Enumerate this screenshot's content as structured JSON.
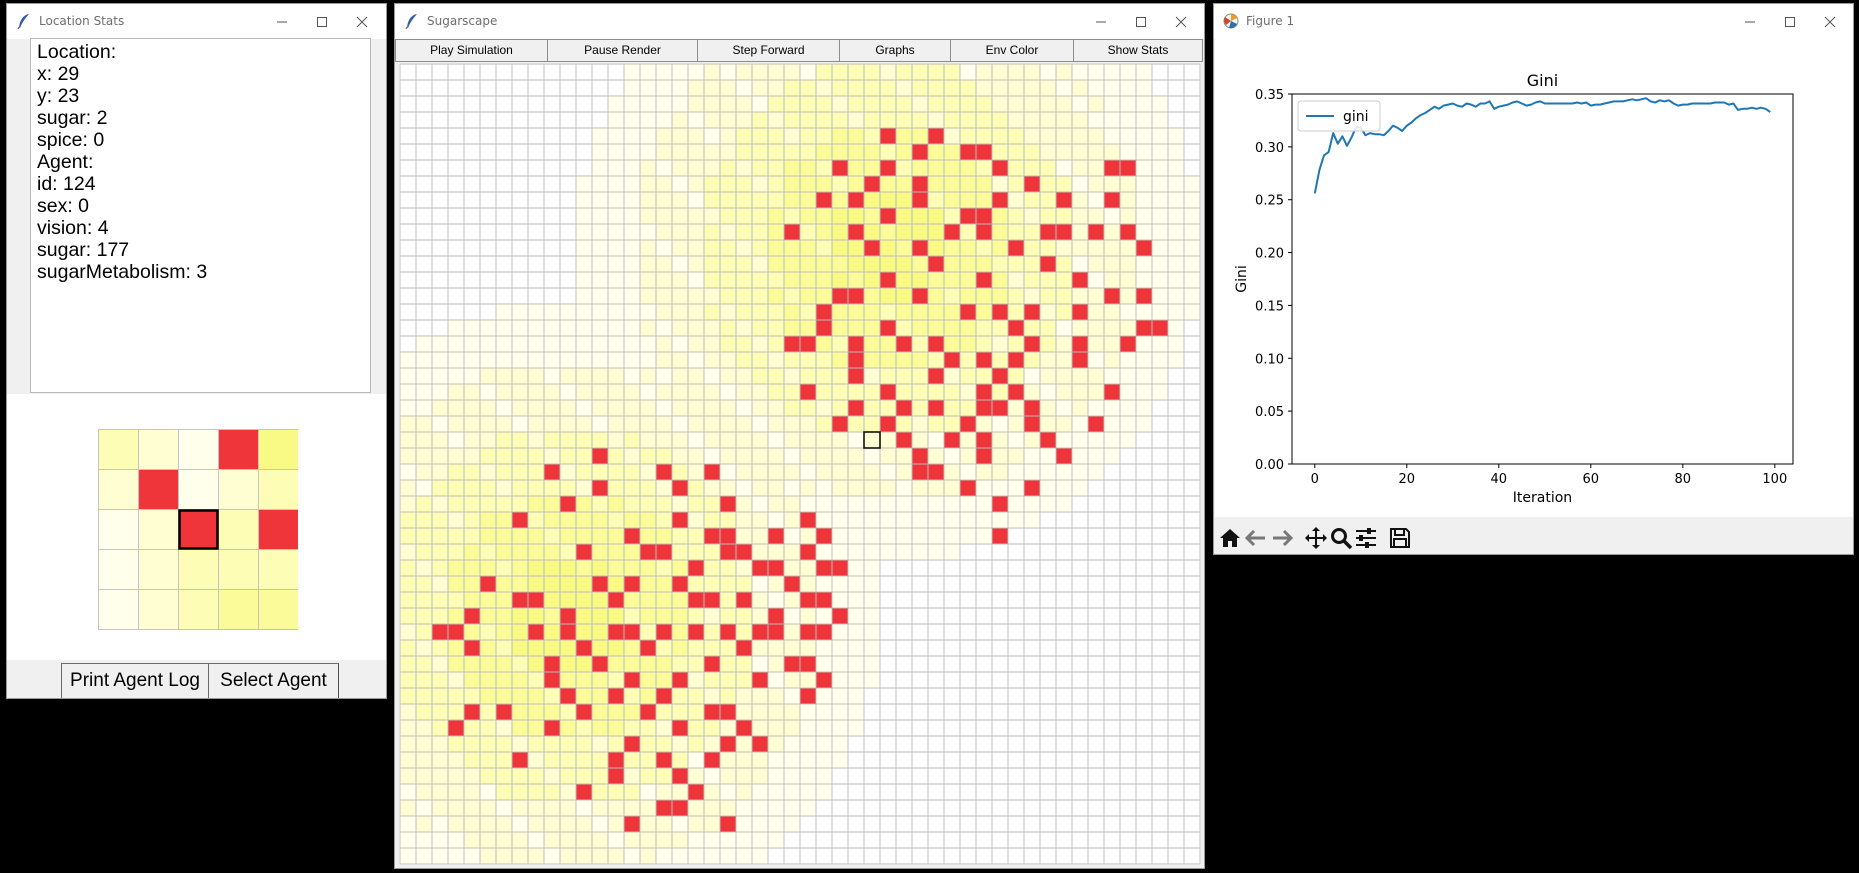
{
  "stats_window": {
    "title": "Location Stats",
    "lines": [
      "Location:",
      "x: 29",
      "y: 23",
      "sugar: 2",
      "spice: 0",
      "",
      "Agent:",
      "id: 124",
      "sex: 0",
      "vision: 4",
      "sugar: 177",
      "sugarMetabolism: 3"
    ],
    "neighborhood": [
      [
        3,
        2,
        1,
        "A",
        5
      ],
      [
        2,
        "A",
        1,
        2,
        3
      ],
      [
        1,
        2,
        "S",
        3,
        "A"
      ],
      [
        1,
        2,
        3,
        3,
        3
      ],
      [
        1,
        2,
        3,
        4,
        4
      ]
    ],
    "print_log_label": "Print Agent Log",
    "select_agent_label": "Select Agent"
  },
  "sugar_window": {
    "title": "Sugarscape",
    "buttons": [
      "Play Simulation",
      "Pause Render",
      "Step Forward",
      "Graphs",
      "Env Color",
      "Show Stats"
    ],
    "grid_size": 50,
    "selected_cell": [
      29,
      23
    ],
    "peaks": [
      [
        30,
        11
      ],
      [
        10,
        34
      ]
    ],
    "agents": [
      [
        30,
        4
      ],
      [
        33,
        4
      ],
      [
        32,
        5
      ],
      [
        35,
        5
      ],
      [
        36,
        5
      ],
      [
        27,
        6
      ],
      [
        30,
        6
      ],
      [
        37,
        6
      ],
      [
        44,
        6
      ],
      [
        45,
        6
      ],
      [
        29,
        7
      ],
      [
        32,
        7
      ],
      [
        39,
        7
      ],
      [
        26,
        8
      ],
      [
        28,
        8
      ],
      [
        32,
        8
      ],
      [
        37,
        8
      ],
      [
        41,
        8
      ],
      [
        44,
        8
      ],
      [
        30,
        9
      ],
      [
        35,
        9
      ],
      [
        36,
        9
      ],
      [
        24,
        10
      ],
      [
        28,
        10
      ],
      [
        34,
        10
      ],
      [
        36,
        10
      ],
      [
        40,
        10
      ],
      [
        41,
        10
      ],
      [
        43,
        10
      ],
      [
        45,
        10
      ],
      [
        29,
        11
      ],
      [
        32,
        11
      ],
      [
        38,
        11
      ],
      [
        46,
        11
      ],
      [
        33,
        12
      ],
      [
        40,
        12
      ],
      [
        30,
        13
      ],
      [
        36,
        13
      ],
      [
        42,
        13
      ],
      [
        27,
        14
      ],
      [
        28,
        14
      ],
      [
        32,
        14
      ],
      [
        44,
        14
      ],
      [
        46,
        14
      ],
      [
        26,
        15
      ],
      [
        35,
        15
      ],
      [
        37,
        15
      ],
      [
        39,
        15
      ],
      [
        42,
        15
      ],
      [
        26,
        16
      ],
      [
        30,
        16
      ],
      [
        38,
        16
      ],
      [
        46,
        16
      ],
      [
        47,
        16
      ],
      [
        24,
        17
      ],
      [
        25,
        17
      ],
      [
        28,
        17
      ],
      [
        31,
        17
      ],
      [
        33,
        17
      ],
      [
        39,
        17
      ],
      [
        42,
        17
      ],
      [
        45,
        17
      ],
      [
        28,
        18
      ],
      [
        34,
        18
      ],
      [
        36,
        18
      ],
      [
        38,
        18
      ],
      [
        42,
        18
      ],
      [
        28,
        19
      ],
      [
        33,
        19
      ],
      [
        37,
        19
      ],
      [
        25,
        20
      ],
      [
        30,
        20
      ],
      [
        36,
        20
      ],
      [
        38,
        20
      ],
      [
        44,
        20
      ],
      [
        28,
        21
      ],
      [
        31,
        21
      ],
      [
        33,
        21
      ],
      [
        36,
        21
      ],
      [
        37,
        21
      ],
      [
        39,
        21
      ],
      [
        27,
        22
      ],
      [
        30,
        22
      ],
      [
        35,
        22
      ],
      [
        39,
        22
      ],
      [
        43,
        22
      ],
      [
        31,
        23
      ],
      [
        34,
        23
      ],
      [
        36,
        23
      ],
      [
        40,
        23
      ],
      [
        12,
        24
      ],
      [
        32,
        24
      ],
      [
        36,
        24
      ],
      [
        41,
        24
      ],
      [
        9,
        25
      ],
      [
        16,
        25
      ],
      [
        19,
        25
      ],
      [
        32,
        25
      ],
      [
        33,
        25
      ],
      [
        12,
        26
      ],
      [
        17,
        26
      ],
      [
        35,
        26
      ],
      [
        39,
        26
      ],
      [
        10,
        27
      ],
      [
        20,
        27
      ],
      [
        37,
        27
      ],
      [
        7,
        28
      ],
      [
        17,
        28
      ],
      [
        25,
        28
      ],
      [
        14,
        29
      ],
      [
        19,
        29
      ],
      [
        20,
        29
      ],
      [
        23,
        29
      ],
      [
        26,
        29
      ],
      [
        37,
        29
      ],
      [
        11,
        30
      ],
      [
        15,
        30
      ],
      [
        16,
        30
      ],
      [
        20,
        30
      ],
      [
        21,
        30
      ],
      [
        25,
        30
      ],
      [
        18,
        31
      ],
      [
        22,
        31
      ],
      [
        23,
        31
      ],
      [
        26,
        31
      ],
      [
        27,
        31
      ],
      [
        5,
        32
      ],
      [
        12,
        32
      ],
      [
        14,
        32
      ],
      [
        17,
        32
      ],
      [
        24,
        32
      ],
      [
        7,
        33
      ],
      [
        8,
        33
      ],
      [
        13,
        33
      ],
      [
        18,
        33
      ],
      [
        19,
        33
      ],
      [
        21,
        33
      ],
      [
        25,
        33
      ],
      [
        26,
        33
      ],
      [
        4,
        34
      ],
      [
        10,
        34
      ],
      [
        23,
        34
      ],
      [
        27,
        34
      ],
      [
        2,
        35
      ],
      [
        3,
        35
      ],
      [
        8,
        35
      ],
      [
        10,
        35
      ],
      [
        13,
        35
      ],
      [
        14,
        35
      ],
      [
        16,
        35
      ],
      [
        18,
        35
      ],
      [
        20,
        35
      ],
      [
        22,
        35
      ],
      [
        23,
        35
      ],
      [
        25,
        35
      ],
      [
        26,
        35
      ],
      [
        4,
        36
      ],
      [
        11,
        36
      ],
      [
        15,
        36
      ],
      [
        21,
        36
      ],
      [
        9,
        37
      ],
      [
        12,
        37
      ],
      [
        19,
        37
      ],
      [
        24,
        37
      ],
      [
        25,
        37
      ],
      [
        9,
        38
      ],
      [
        14,
        38
      ],
      [
        17,
        38
      ],
      [
        22,
        38
      ],
      [
        26,
        38
      ],
      [
        10,
        39
      ],
      [
        13,
        39
      ],
      [
        16,
        39
      ],
      [
        25,
        39
      ],
      [
        4,
        40
      ],
      [
        6,
        40
      ],
      [
        11,
        40
      ],
      [
        15,
        40
      ],
      [
        19,
        40
      ],
      [
        20,
        40
      ],
      [
        3,
        41
      ],
      [
        9,
        41
      ],
      [
        17,
        41
      ],
      [
        21,
        41
      ],
      [
        14,
        42
      ],
      [
        20,
        42
      ],
      [
        22,
        42
      ],
      [
        7,
        43
      ],
      [
        13,
        43
      ],
      [
        16,
        43
      ],
      [
        19,
        43
      ],
      [
        13,
        44
      ],
      [
        17,
        44
      ],
      [
        11,
        45
      ],
      [
        18,
        45
      ],
      [
        16,
        46
      ],
      [
        17,
        46
      ],
      [
        14,
        47
      ],
      [
        20,
        47
      ]
    ]
  },
  "figure_window": {
    "title": "Figure 1",
    "toolbar_icons": [
      "home-icon",
      "back-arrow-icon",
      "forward-arrow-icon",
      "pan-icon",
      "zoom-icon",
      "configure-icon",
      "save-icon"
    ]
  },
  "chart_data": {
    "type": "line",
    "title": "Gini",
    "xlabel": "Iteration",
    "ylabel": "Gini",
    "xlim": [
      -4.95,
      103.95
    ],
    "ylim": [
      0.0,
      0.35
    ],
    "xticks": [
      "0",
      "20",
      "40",
      "60",
      "80",
      "100"
    ],
    "yticks": [
      "0.00",
      "0.05",
      "0.10",
      "0.15",
      "0.20",
      "0.25",
      "0.30",
      "0.35"
    ],
    "legend": "upper left",
    "color": "#1f77b4",
    "series": [
      {
        "name": "gini",
        "x": [
          0,
          1,
          2,
          3,
          4,
          5,
          6,
          7,
          8,
          9,
          10,
          11,
          12,
          13,
          14,
          15,
          16,
          17,
          18,
          19,
          20,
          21,
          22,
          23,
          24,
          25,
          26,
          27,
          28,
          29,
          30,
          31,
          32,
          33,
          34,
          35,
          36,
          37,
          38,
          39,
          40,
          41,
          42,
          43,
          44,
          45,
          46,
          47,
          48,
          49,
          50,
          51,
          52,
          53,
          54,
          55,
          56,
          57,
          58,
          59,
          60,
          61,
          62,
          63,
          64,
          65,
          66,
          67,
          68,
          69,
          70,
          71,
          72,
          73,
          74,
          75,
          76,
          77,
          78,
          79,
          80,
          81,
          82,
          83,
          84,
          85,
          86,
          87,
          88,
          89,
          90,
          91,
          92,
          93,
          94,
          95,
          96,
          97,
          98,
          99
        ],
        "values": [
          0.256,
          0.278,
          0.292,
          0.295,
          0.313,
          0.303,
          0.31,
          0.301,
          0.309,
          0.319,
          0.318,
          0.311,
          0.313,
          0.312,
          0.312,
          0.311,
          0.315,
          0.32,
          0.318,
          0.315,
          0.32,
          0.323,
          0.327,
          0.33,
          0.332,
          0.335,
          0.338,
          0.336,
          0.339,
          0.34,
          0.341,
          0.339,
          0.338,
          0.341,
          0.34,
          0.338,
          0.341,
          0.341,
          0.343,
          0.336,
          0.338,
          0.339,
          0.34,
          0.342,
          0.343,
          0.341,
          0.339,
          0.34,
          0.342,
          0.343,
          0.341,
          0.341,
          0.341,
          0.341,
          0.341,
          0.341,
          0.341,
          0.342,
          0.341,
          0.342,
          0.339,
          0.34,
          0.34,
          0.341,
          0.342,
          0.343,
          0.343,
          0.343,
          0.344,
          0.345,
          0.344,
          0.345,
          0.346,
          0.343,
          0.342,
          0.344,
          0.343,
          0.344,
          0.341,
          0.339,
          0.34,
          0.34,
          0.341,
          0.341,
          0.341,
          0.341,
          0.341,
          0.342,
          0.342,
          0.342,
          0.34,
          0.341,
          0.335,
          0.336,
          0.336,
          0.337,
          0.336,
          0.337,
          0.336,
          0.333
        ]
      }
    ]
  }
}
